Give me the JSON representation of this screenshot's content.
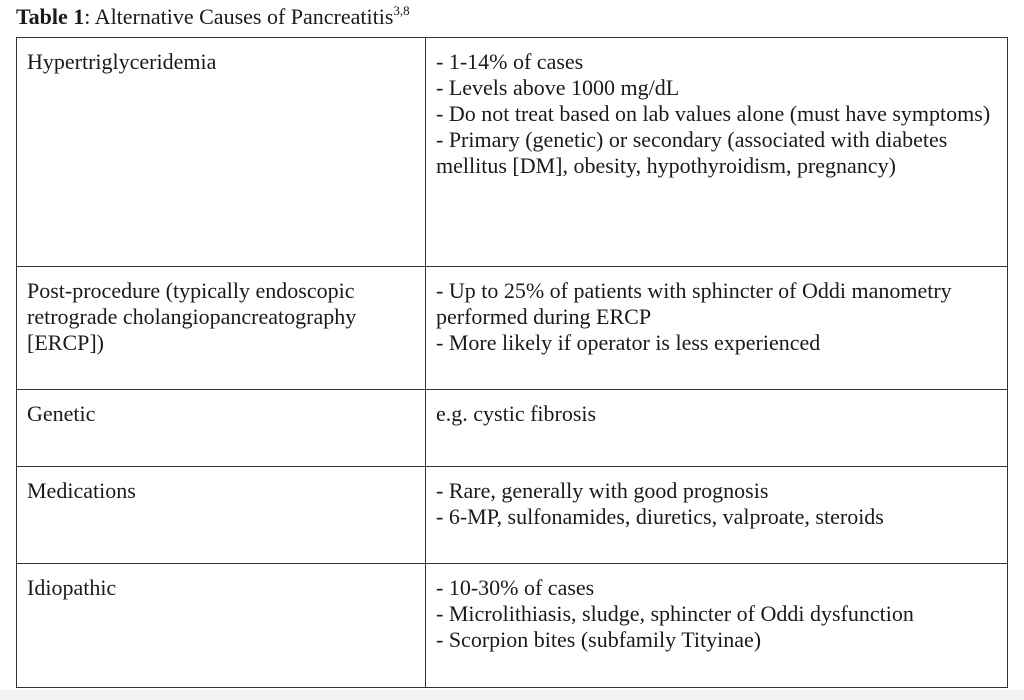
{
  "title": {
    "label": "Table 1",
    "text": ": Alternative Causes of Pancreatitis",
    "superscript": "3,8"
  },
  "rows": [
    {
      "cause": "Hypertriglyceridemia",
      "details": [
        "- 1-14% of cases",
        "- Levels above 1000 mg/dL",
        "- Do not treat based on lab values alone (must have symptoms)",
        "- Primary (genetic) or secondary (associated with diabetes mellitus [DM], obesity, hypothyroidism, pregnancy)"
      ]
    },
    {
      "cause": "Post-procedure (typically endoscopic retrograde cholangiopancreatography [ERCP])",
      "details": [
        "- Up to 25% of patients with sphincter of Oddi manometry performed during ERCP",
        "- More likely if operator is less experienced"
      ]
    },
    {
      "cause": "Genetic",
      "details": [
        "e.g. cystic fibrosis"
      ]
    },
    {
      "cause": "Medications",
      "details": [
        "- Rare, generally with good prognosis",
        "- 6-MP, sulfonamides, diuretics, valproate, steroids"
      ]
    },
    {
      "cause": "Idiopathic",
      "details": [
        "- 10-30% of cases",
        "- Microlithiasis, sludge, sphincter of Oddi dysfunction",
        "- Scorpion bites (subfamily Tityinae)"
      ]
    }
  ]
}
